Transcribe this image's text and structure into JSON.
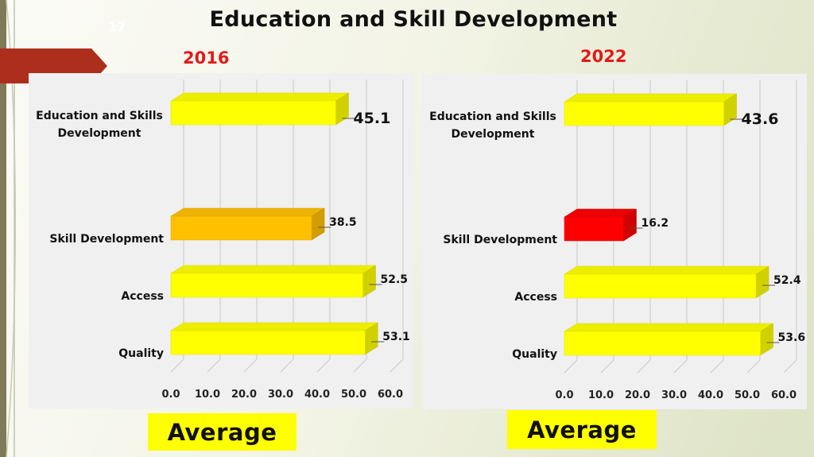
{
  "slide": {
    "title": "Education and Skill Development",
    "number": "17"
  },
  "colors": {
    "bar_yellow": "#ffff00",
    "bar_orange": "#ffc000",
    "bar_red": "#ff0000",
    "year_label": "#e21a1a",
    "ribbon": "#ad2e1c"
  },
  "chart_data": [
    {
      "type": "bar",
      "orientation": "horizontal",
      "title": "2016",
      "categories": [
        "Education and Skills Development",
        "Skill Development",
        "Access",
        "Quality"
      ],
      "values": [
        45.1,
        38.5,
        52.5,
        53.1
      ],
      "bar_colors": [
        "#ffff00",
        "#ffc000",
        "#ffff00",
        "#ffff00"
      ],
      "xlim": [
        0,
        60
      ],
      "xticks": [
        "0.0",
        "10.0",
        "20.0",
        "30.0",
        "40.0",
        "50.0",
        "60.0"
      ],
      "grid": true,
      "xlabel": "",
      "ylabel": "",
      "footer_label": "Average"
    },
    {
      "type": "bar",
      "orientation": "horizontal",
      "title": "2022",
      "categories": [
        "Education and Skills Development",
        "Skill Development",
        "Access",
        "Quality"
      ],
      "values": [
        43.6,
        16.2,
        52.4,
        53.6
      ],
      "bar_colors": [
        "#ffff00",
        "#ff0000",
        "#ffff00",
        "#ffff00"
      ],
      "xlim": [
        0,
        60
      ],
      "xticks": [
        "0.0",
        "10.0",
        "20.0",
        "30.0",
        "40.0",
        "50.0",
        "60.0"
      ],
      "grid": true,
      "xlabel": "",
      "ylabel": "",
      "footer_label": "Average"
    }
  ]
}
